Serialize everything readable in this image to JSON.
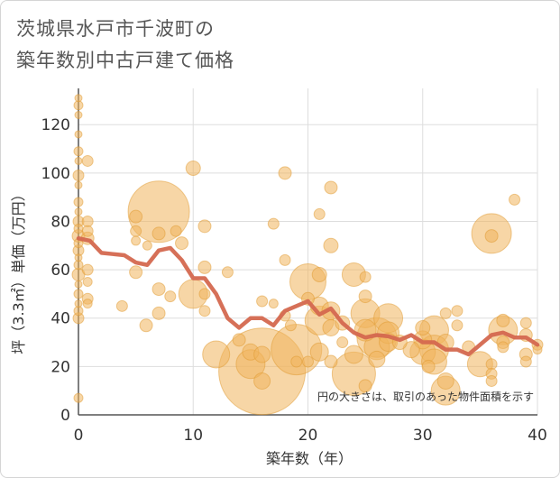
{
  "title": {
    "line1": "茨城県水戸市千波町の",
    "line2": "築年数別中古戸建て価格"
  },
  "chart_data": {
    "type": "scatter",
    "xlabel": "築年数（年）",
    "ylabel": "坪（3.3㎡）単価（万円）",
    "xlim": [
      0,
      40
    ],
    "ylim": [
      0,
      135
    ],
    "xticks": [
      0,
      10,
      20,
      30,
      40
    ],
    "yticks": [
      0,
      20,
      40,
      60,
      80,
      100,
      120
    ],
    "grid": true,
    "note": "円の大きさは、取引のあった物件面積を示す",
    "colors": {
      "bubble_fill": "#f0b45c",
      "bubble_stroke": "#e09a30",
      "line": "#d4684f",
      "grid": "#dddddd",
      "axis": "#555555"
    },
    "series": [
      {
        "type": "bubble",
        "points": [
          {
            "x": 0,
            "y": 131,
            "s": 4
          },
          {
            "x": 0,
            "y": 128,
            "s": 5
          },
          {
            "x": 0,
            "y": 124,
            "s": 4
          },
          {
            "x": 0,
            "y": 116,
            "s": 4
          },
          {
            "x": 0,
            "y": 109,
            "s": 5
          },
          {
            "x": 0,
            "y": 105,
            "s": 4
          },
          {
            "x": 0,
            "y": 99,
            "s": 6
          },
          {
            "x": 0,
            "y": 95,
            "s": 4
          },
          {
            "x": 0,
            "y": 88,
            "s": 5
          },
          {
            "x": 0,
            "y": 84,
            "s": 4
          },
          {
            "x": 0,
            "y": 80,
            "s": 6
          },
          {
            "x": 0,
            "y": 77,
            "s": 5
          },
          {
            "x": 0,
            "y": 74,
            "s": 7
          },
          {
            "x": 0,
            "y": 71,
            "s": 5
          },
          {
            "x": 0,
            "y": 68,
            "s": 6
          },
          {
            "x": 0,
            "y": 65,
            "s": 4
          },
          {
            "x": 0,
            "y": 62,
            "s": 5
          },
          {
            "x": 0,
            "y": 58,
            "s": 7
          },
          {
            "x": 0,
            "y": 54,
            "s": 4
          },
          {
            "x": 0,
            "y": 50,
            "s": 5
          },
          {
            "x": 0,
            "y": 46,
            "s": 4
          },
          {
            "x": 0,
            "y": 43,
            "s": 5
          },
          {
            "x": 0,
            "y": 40,
            "s": 6
          },
          {
            "x": 0,
            "y": 7,
            "s": 5
          },
          {
            "x": 0.8,
            "y": 105,
            "s": 6
          },
          {
            "x": 0.8,
            "y": 80,
            "s": 6
          },
          {
            "x": 0.8,
            "y": 76,
            "s": 6
          },
          {
            "x": 0.8,
            "y": 73,
            "s": 7
          },
          {
            "x": 0.8,
            "y": 60,
            "s": 6
          },
          {
            "x": 0.8,
            "y": 55,
            "s": 5
          },
          {
            "x": 0.8,
            "y": 48,
            "s": 6
          },
          {
            "x": 0.8,
            "y": 46,
            "s": 5
          },
          {
            "x": 3.8,
            "y": 45,
            "s": 6
          },
          {
            "x": 5,
            "y": 82,
            "s": 7
          },
          {
            "x": 5,
            "y": 76,
            "s": 6
          },
          {
            "x": 5,
            "y": 72,
            "s": 5
          },
          {
            "x": 5,
            "y": 59,
            "s": 7
          },
          {
            "x": 5.9,
            "y": 37,
            "s": 7
          },
          {
            "x": 6,
            "y": 70,
            "s": 5
          },
          {
            "x": 7,
            "y": 84,
            "s": 34
          },
          {
            "x": 7,
            "y": 75,
            "s": 7
          },
          {
            "x": 7,
            "y": 52,
            "s": 7
          },
          {
            "x": 7,
            "y": 42,
            "s": 7
          },
          {
            "x": 8,
            "y": 49,
            "s": 6
          },
          {
            "x": 8.5,
            "y": 76,
            "s": 6
          },
          {
            "x": 9,
            "y": 71,
            "s": 7
          },
          {
            "x": 10,
            "y": 102,
            "s": 8
          },
          {
            "x": 10,
            "y": 50,
            "s": 16
          },
          {
            "x": 11,
            "y": 78,
            "s": 7
          },
          {
            "x": 11,
            "y": 61,
            "s": 7
          },
          {
            "x": 11,
            "y": 50,
            "s": 6
          },
          {
            "x": 11,
            "y": 43,
            "s": 6
          },
          {
            "x": 12,
            "y": 25,
            "s": 15
          },
          {
            "x": 13,
            "y": 59,
            "s": 6
          },
          {
            "x": 14,
            "y": 31,
            "s": 7
          },
          {
            "x": 15,
            "y": 26,
            "s": 9
          },
          {
            "x": 15,
            "y": 21,
            "s": 16
          },
          {
            "x": 16,
            "y": 47,
            "s": 6
          },
          {
            "x": 16,
            "y": 25,
            "s": 9
          },
          {
            "x": 16,
            "y": 18,
            "s": 48
          },
          {
            "x": 16,
            "y": 14,
            "s": 9
          },
          {
            "x": 17,
            "y": 79,
            "s": 6
          },
          {
            "x": 17,
            "y": 46,
            "s": 5
          },
          {
            "x": 18,
            "y": 100,
            "s": 7
          },
          {
            "x": 18,
            "y": 64,
            "s": 6
          },
          {
            "x": 18,
            "y": 41,
            "s": 6
          },
          {
            "x": 18.5,
            "y": 37,
            "s": 6
          },
          {
            "x": 19,
            "y": 27,
            "s": 28
          },
          {
            "x": 19,
            "y": 22,
            "s": 6
          },
          {
            "x": 20,
            "y": 55,
            "s": 20
          },
          {
            "x": 20,
            "y": 48,
            "s": 7
          },
          {
            "x": 20,
            "y": 22,
            "s": 6
          },
          {
            "x": 21,
            "y": 83,
            "s": 6
          },
          {
            "x": 21,
            "y": 58,
            "s": 8
          },
          {
            "x": 21,
            "y": 45,
            "s": 10
          },
          {
            "x": 21,
            "y": 39,
            "s": 16
          },
          {
            "x": 21,
            "y": 26,
            "s": 10
          },
          {
            "x": 22,
            "y": 94,
            "s": 7
          },
          {
            "x": 22,
            "y": 70,
            "s": 8
          },
          {
            "x": 22,
            "y": 43,
            "s": 10
          },
          {
            "x": 22,
            "y": 36,
            "s": 9
          },
          {
            "x": 22,
            "y": 22,
            "s": 7
          },
          {
            "x": 23,
            "y": 38,
            "s": 8
          },
          {
            "x": 23,
            "y": 30,
            "s": 6
          },
          {
            "x": 24,
            "y": 58,
            "s": 13
          },
          {
            "x": 24,
            "y": 25,
            "s": 10
          },
          {
            "x": 24,
            "y": 17,
            "s": 24
          },
          {
            "x": 25,
            "y": 57,
            "s": 6
          },
          {
            "x": 25,
            "y": 49,
            "s": 7
          },
          {
            "x": 25,
            "y": 42,
            "s": 16
          },
          {
            "x": 25,
            "y": 35,
            "s": 12
          },
          {
            "x": 25,
            "y": 12,
            "s": 7
          },
          {
            "x": 26,
            "y": 32,
            "s": 22
          },
          {
            "x": 26,
            "y": 28,
            "s": 14
          },
          {
            "x": 26,
            "y": 23,
            "s": 9
          },
          {
            "x": 27,
            "y": 40,
            "s": 16
          },
          {
            "x": 27,
            "y": 34,
            "s": 12
          },
          {
            "x": 27,
            "y": 30,
            "s": 10
          },
          {
            "x": 28,
            "y": 30,
            "s": 8
          },
          {
            "x": 29,
            "y": 27,
            "s": 9
          },
          {
            "x": 30,
            "y": 36,
            "s": 8
          },
          {
            "x": 30,
            "y": 31,
            "s": 10
          },
          {
            "x": 30,
            "y": 26,
            "s": 14
          },
          {
            "x": 30.5,
            "y": 20,
            "s": 7
          },
          {
            "x": 31,
            "y": 35,
            "s": 16
          },
          {
            "x": 31,
            "y": 27,
            "s": 16
          },
          {
            "x": 31,
            "y": 22,
            "s": 14
          },
          {
            "x": 32,
            "y": 42,
            "s": 6
          },
          {
            "x": 32,
            "y": 30,
            "s": 9
          },
          {
            "x": 32,
            "y": 14,
            "s": 9
          },
          {
            "x": 32,
            "y": 10,
            "s": 16
          },
          {
            "x": 33,
            "y": 43,
            "s": 6
          },
          {
            "x": 33,
            "y": 37,
            "s": 6
          },
          {
            "x": 34,
            "y": 28,
            "s": 7
          },
          {
            "x": 35,
            "y": 21,
            "s": 14
          },
          {
            "x": 36,
            "y": 75,
            "s": 22
          },
          {
            "x": 36,
            "y": 74,
            "s": 7
          },
          {
            "x": 36,
            "y": 21,
            "s": 6
          },
          {
            "x": 36,
            "y": 17,
            "s": 6
          },
          {
            "x": 36,
            "y": 14,
            "s": 6
          },
          {
            "x": 37,
            "y": 39,
            "s": 7
          },
          {
            "x": 37,
            "y": 35,
            "s": 16
          },
          {
            "x": 37,
            "y": 30,
            "s": 7
          },
          {
            "x": 37,
            "y": 28,
            "s": 6
          },
          {
            "x": 38,
            "y": 89,
            "s": 6
          },
          {
            "x": 39,
            "y": 38,
            "s": 6
          },
          {
            "x": 39,
            "y": 33,
            "s": 7
          },
          {
            "x": 39,
            "y": 25,
            "s": 7
          },
          {
            "x": 39,
            "y": 22,
            "s": 6
          },
          {
            "x": 40,
            "y": 29,
            "s": 6
          },
          {
            "x": 40,
            "y": 27,
            "s": 5
          }
        ]
      },
      {
        "type": "line",
        "x": [
          0,
          1,
          2,
          3,
          4,
          5,
          6,
          7,
          8,
          9,
          10,
          11,
          12,
          13,
          14,
          15,
          16,
          17,
          18,
          19,
          20,
          21,
          22,
          23,
          24,
          25,
          26,
          27,
          28,
          29,
          30,
          31,
          32,
          33,
          34,
          35,
          36,
          37,
          38,
          39,
          40
        ],
        "y": [
          73,
          72,
          67,
          66.5,
          66,
          63,
          62,
          68,
          69,
          64,
          56.5,
          56.5,
          50,
          40,
          36,
          40,
          40,
          37,
          43,
          45,
          47,
          41.5,
          44,
          38,
          34,
          32,
          33,
          32.5,
          31,
          33,
          30,
          30,
          27,
          27,
          25,
          29,
          33,
          34,
          32,
          32,
          29
        ]
      }
    ]
  }
}
